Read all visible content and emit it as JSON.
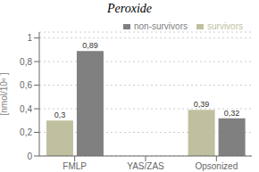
{
  "chart_data": {
    "type": "bar",
    "title": "Peroxide",
    "ylabel": "[nmol/10⁶ ]",
    "categories": [
      "FMLP",
      "YAS/ZAS",
      "Opsonized"
    ],
    "series": [
      {
        "name": "survivors",
        "color": "#c0c0a0",
        "values": [
          0.3,
          0.0,
          0.39
        ],
        "value_labels": [
          "0,3",
          null,
          "0,39"
        ]
      },
      {
        "name": "non-survivors",
        "color": "#808080",
        "values": [
          0.89,
          0.0,
          0.32
        ],
        "value_labels": [
          "0,89",
          null,
          "0,32"
        ]
      }
    ],
    "ylim": [
      0,
      1.05
    ],
    "yticks": [
      0,
      {
        "value": 0.2,
        "label": "0,2"
      },
      {
        "value": 0.4,
        "label": "0,4"
      },
      {
        "value": 0.6,
        "label": "0,6"
      },
      {
        "value": 0.8,
        "label": "0,8"
      },
      1
    ],
    "grid": true,
    "legend": "upper right",
    "data_labels": true
  }
}
